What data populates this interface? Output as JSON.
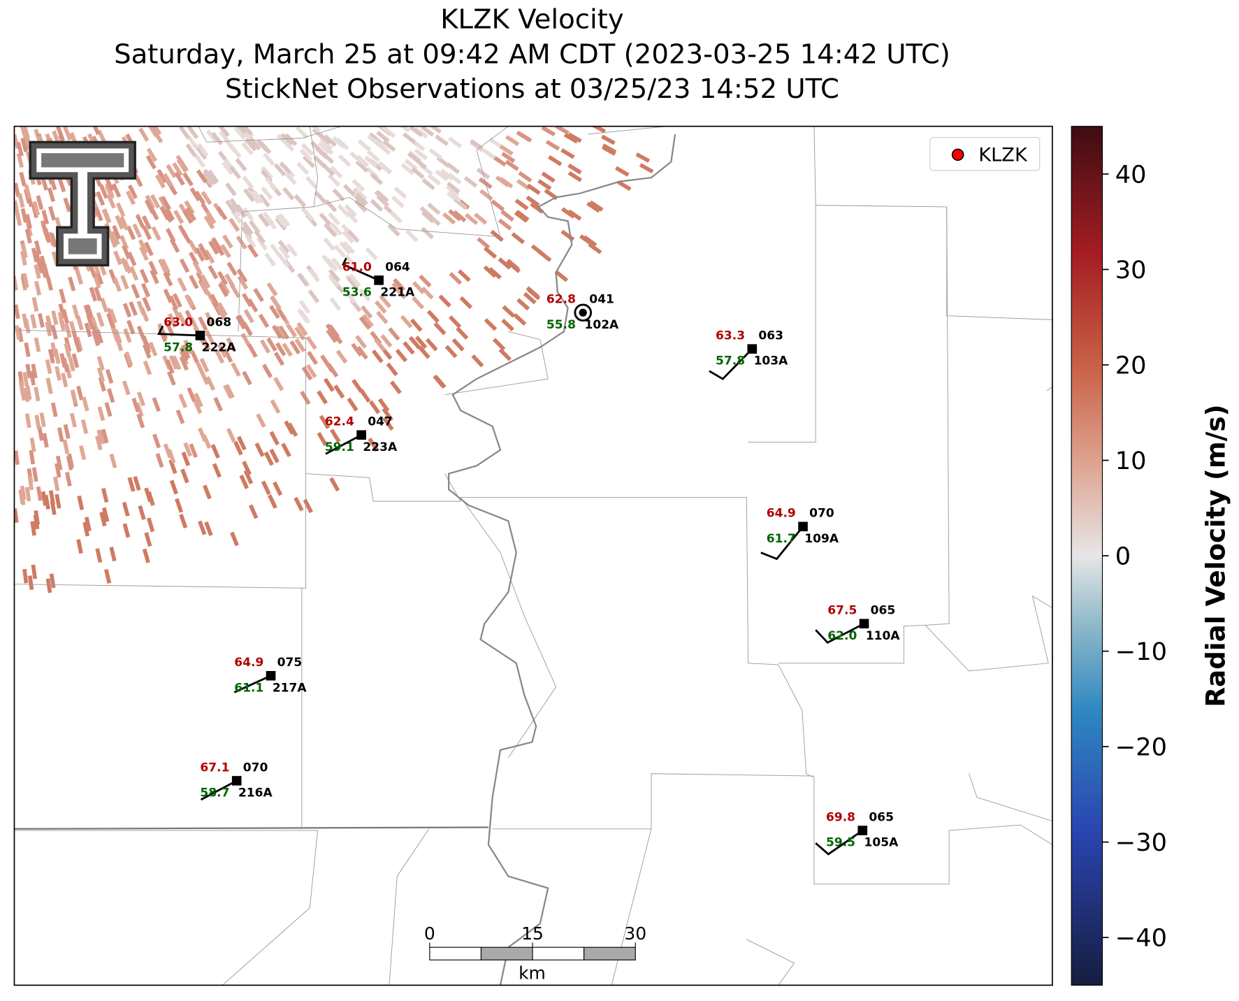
{
  "title": [
    "KLZK Velocity",
    "Saturday, March 25 at 09:42 AM CDT (2023-03-25 14:42 UTC)",
    "StickNet Observations at 03/25/23 14:52 UTC"
  ],
  "legend": {
    "label": "KLZK",
    "color": "#ff0000"
  },
  "colorbar": {
    "label": "Radial Velocity (m/s)",
    "lim": [
      -45,
      45
    ],
    "ticks": [
      {
        "value": -40,
        "label": "−40"
      },
      {
        "value": -30,
        "label": "−30"
      },
      {
        "value": -20,
        "label": "−20"
      },
      {
        "value": -10,
        "label": "−10"
      },
      0,
      10,
      20,
      30,
      40
    ]
  },
  "stations": [
    {
      "id": "221A",
      "temp": "61.0",
      "dew": "53.6",
      "pres": "064"
    },
    {
      "id": "222A",
      "temp": "63.0",
      "dew": "57.8",
      "pres": "068"
    },
    {
      "id": "102A",
      "temp": "62.8",
      "dew": "55.8",
      "pres": "041"
    },
    {
      "id": "103A",
      "temp": "63.3",
      "dew": "57.8",
      "pres": "063"
    },
    {
      "id": "223A",
      "temp": "62.4",
      "dew": "59.1",
      "pres": "047"
    },
    {
      "id": "109A",
      "temp": "64.9",
      "dew": "61.7",
      "pres": "070"
    },
    {
      "id": "110A",
      "temp": "67.5",
      "dew": "62.0",
      "pres": "065"
    },
    {
      "id": "217A",
      "temp": "64.9",
      "dew": "61.1",
      "pres": "075"
    },
    {
      "id": "216A",
      "temp": "67.1",
      "dew": "58.7",
      "pres": "070"
    },
    {
      "id": "105A",
      "temp": "69.8",
      "dew": "59.5",
      "pres": "065"
    }
  ],
  "scalebar": {
    "ticks": [
      0,
      15,
      30
    ],
    "unit": "km"
  }
}
